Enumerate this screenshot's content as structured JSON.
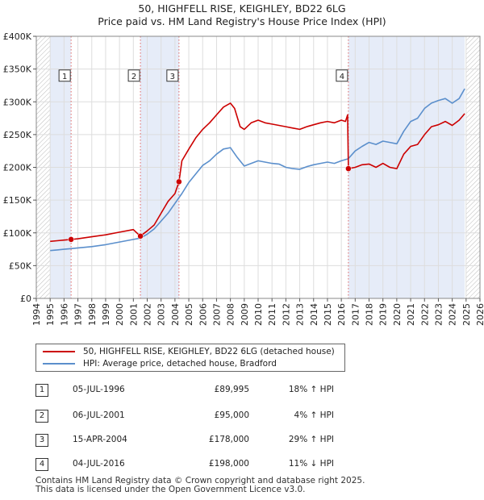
{
  "header": {
    "title": "50, HIGHFELL RISE, KEIGHLEY, BD22 6LG",
    "subtitle": "Price paid vs. HM Land Registry's House Price Index (HPI)"
  },
  "chart_data": {
    "type": "line",
    "title": "50, HIGHFELL RISE, KEIGHLEY, BD22 6LG",
    "subtitle": "Price paid vs. HM Land Registry's House Price Index (HPI)",
    "xlim": [
      1994,
      2026
    ],
    "ylim": [
      0,
      400000
    ],
    "x_ticks": [
      1994,
      1995,
      1996,
      1997,
      1998,
      1999,
      2000,
      2001,
      2002,
      2003,
      2004,
      2005,
      2006,
      2007,
      2008,
      2009,
      2010,
      2011,
      2012,
      2013,
      2014,
      2015,
      2016,
      2017,
      2018,
      2019,
      2020,
      2021,
      2022,
      2023,
      2024,
      2025,
      2026
    ],
    "y_ticks": [
      0,
      50000,
      100000,
      150000,
      200000,
      250000,
      300000,
      350000,
      400000
    ],
    "y_tick_labels": [
      "£0",
      "£50K",
      "£100K",
      "£150K",
      "£200K",
      "£250K",
      "£300K",
      "£350K",
      "£400K"
    ],
    "grid": true,
    "shaded_ranges": [
      [
        1995.0,
        1996.5
      ],
      [
        2001.5,
        2004.3
      ],
      [
        2016.5,
        2024.9
      ]
    ],
    "hatched_ranges": [
      [
        1994,
        1995.0
      ],
      [
        2025.0,
        2026
      ]
    ],
    "series": [
      {
        "name": "50, HIGHFELL RISE, KEIGHLEY, BD22 6LG (detached house)",
        "color": "#cc0000",
        "x": [
          1995.0,
          1995.5,
          1996.0,
          1996.5,
          1997.0,
          1998.0,
          1999.0,
          2000.0,
          2001.0,
          2001.5,
          2002.0,
          2002.5,
          2003.0,
          2003.5,
          2004.0,
          2004.29,
          2004.5,
          2005.0,
          2005.5,
          2006.0,
          2006.5,
          2007.0,
          2007.5,
          2008.0,
          2008.3,
          2008.7,
          2009.0,
          2009.5,
          2010.0,
          2010.5,
          2011.0,
          2011.5,
          2012.0,
          2012.5,
          2013.0,
          2013.5,
          2014.0,
          2014.5,
          2015.0,
          2015.5,
          2016.0,
          2016.3,
          2016.45,
          2016.51,
          2017.0,
          2017.5,
          2018.0,
          2018.5,
          2019.0,
          2019.5,
          2020.0,
          2020.5,
          2021.0,
          2021.5,
          2022.0,
          2022.5,
          2023.0,
          2023.5,
          2024.0,
          2024.5,
          2024.9
        ],
        "values": [
          87000,
          88000,
          89000,
          89995,
          91000,
          94000,
          97000,
          101000,
          105000,
          95000,
          103000,
          112000,
          130000,
          148000,
          160000,
          178000,
          210000,
          228000,
          245000,
          258000,
          268000,
          280000,
          292000,
          298000,
          290000,
          262000,
          258000,
          268000,
          272000,
          268000,
          266000,
          264000,
          262000,
          260000,
          258000,
          262000,
          265000,
          268000,
          270000,
          268000,
          272000,
          270000,
          280000,
          198000,
          200000,
          204000,
          205000,
          200000,
          206000,
          200000,
          198000,
          220000,
          232000,
          235000,
          250000,
          262000,
          265000,
          270000,
          264000,
          272000,
          282000
        ]
      },
      {
        "name": "HPI: Average price, detached house, Bradford",
        "color": "#5b8fcc",
        "x": [
          1995.0,
          1995.5,
          1996.0,
          1996.5,
          1997.0,
          1998.0,
          1999.0,
          2000.0,
          2001.0,
          2001.5,
          2002.0,
          2002.5,
          2003.0,
          2003.5,
          2004.0,
          2004.5,
          2005.0,
          2005.5,
          2006.0,
          2006.5,
          2007.0,
          2007.5,
          2008.0,
          2008.5,
          2009.0,
          2009.5,
          2010.0,
          2010.5,
          2011.0,
          2011.5,
          2012.0,
          2012.5,
          2013.0,
          2013.5,
          2014.0,
          2014.5,
          2015.0,
          2015.5,
          2016.0,
          2016.5,
          2017.0,
          2017.5,
          2018.0,
          2018.5,
          2019.0,
          2019.5,
          2020.0,
          2020.5,
          2021.0,
          2021.5,
          2022.0,
          2022.5,
          2023.0,
          2023.5,
          2024.0,
          2024.5,
          2024.9
        ],
        "values": [
          73000,
          74000,
          75000,
          76000,
          77000,
          79000,
          82000,
          86000,
          90000,
          92000,
          98000,
          106000,
          118000,
          130000,
          145000,
          160000,
          177000,
          190000,
          203000,
          210000,
          220000,
          228000,
          230000,
          215000,
          202000,
          206000,
          210000,
          208000,
          206000,
          205000,
          200000,
          198000,
          197000,
          201000,
          204000,
          206000,
          208000,
          206000,
          210000,
          213000,
          225000,
          232000,
          238000,
          235000,
          240000,
          238000,
          236000,
          255000,
          270000,
          275000,
          290000,
          298000,
          302000,
          305000,
          298000,
          305000,
          320000
        ]
      }
    ],
    "sales": [
      {
        "label": "1",
        "x": 1996.51,
        "value": 89995,
        "box_value": 340000
      },
      {
        "label": "2",
        "x": 2001.51,
        "value": 95000,
        "box_value": 340000
      },
      {
        "label": "3",
        "x": 2004.29,
        "value": 178000,
        "box_value": 340000
      },
      {
        "label": "4",
        "x": 2016.51,
        "value": 198000,
        "box_value": 340000
      }
    ]
  },
  "legend": {
    "items": [
      {
        "label": "50, HIGHFELL RISE, KEIGHLEY, BD22 6LG (detached house)",
        "color": "#cc0000"
      },
      {
        "label": "HPI: Average price, detached house, Bradford",
        "color": "#5b8fcc"
      }
    ]
  },
  "transactions": [
    {
      "num": "1",
      "date": "05-JUL-1996",
      "price": "£89,995",
      "hpi": "18% ↑ HPI"
    },
    {
      "num": "2",
      "date": "06-JUL-2001",
      "price": "£95,000",
      "hpi": "4% ↑ HPI"
    },
    {
      "num": "3",
      "date": "15-APR-2004",
      "price": "£178,000",
      "hpi": "29% ↑ HPI"
    },
    {
      "num": "4",
      "date": "04-JUL-2016",
      "price": "£198,000",
      "hpi": "11% ↓ HPI"
    }
  ],
  "footer": {
    "line1": "Contains HM Land Registry data © Crown copyright and database right 2025.",
    "line2": "This data is licensed under the Open Government Licence v3.0."
  }
}
